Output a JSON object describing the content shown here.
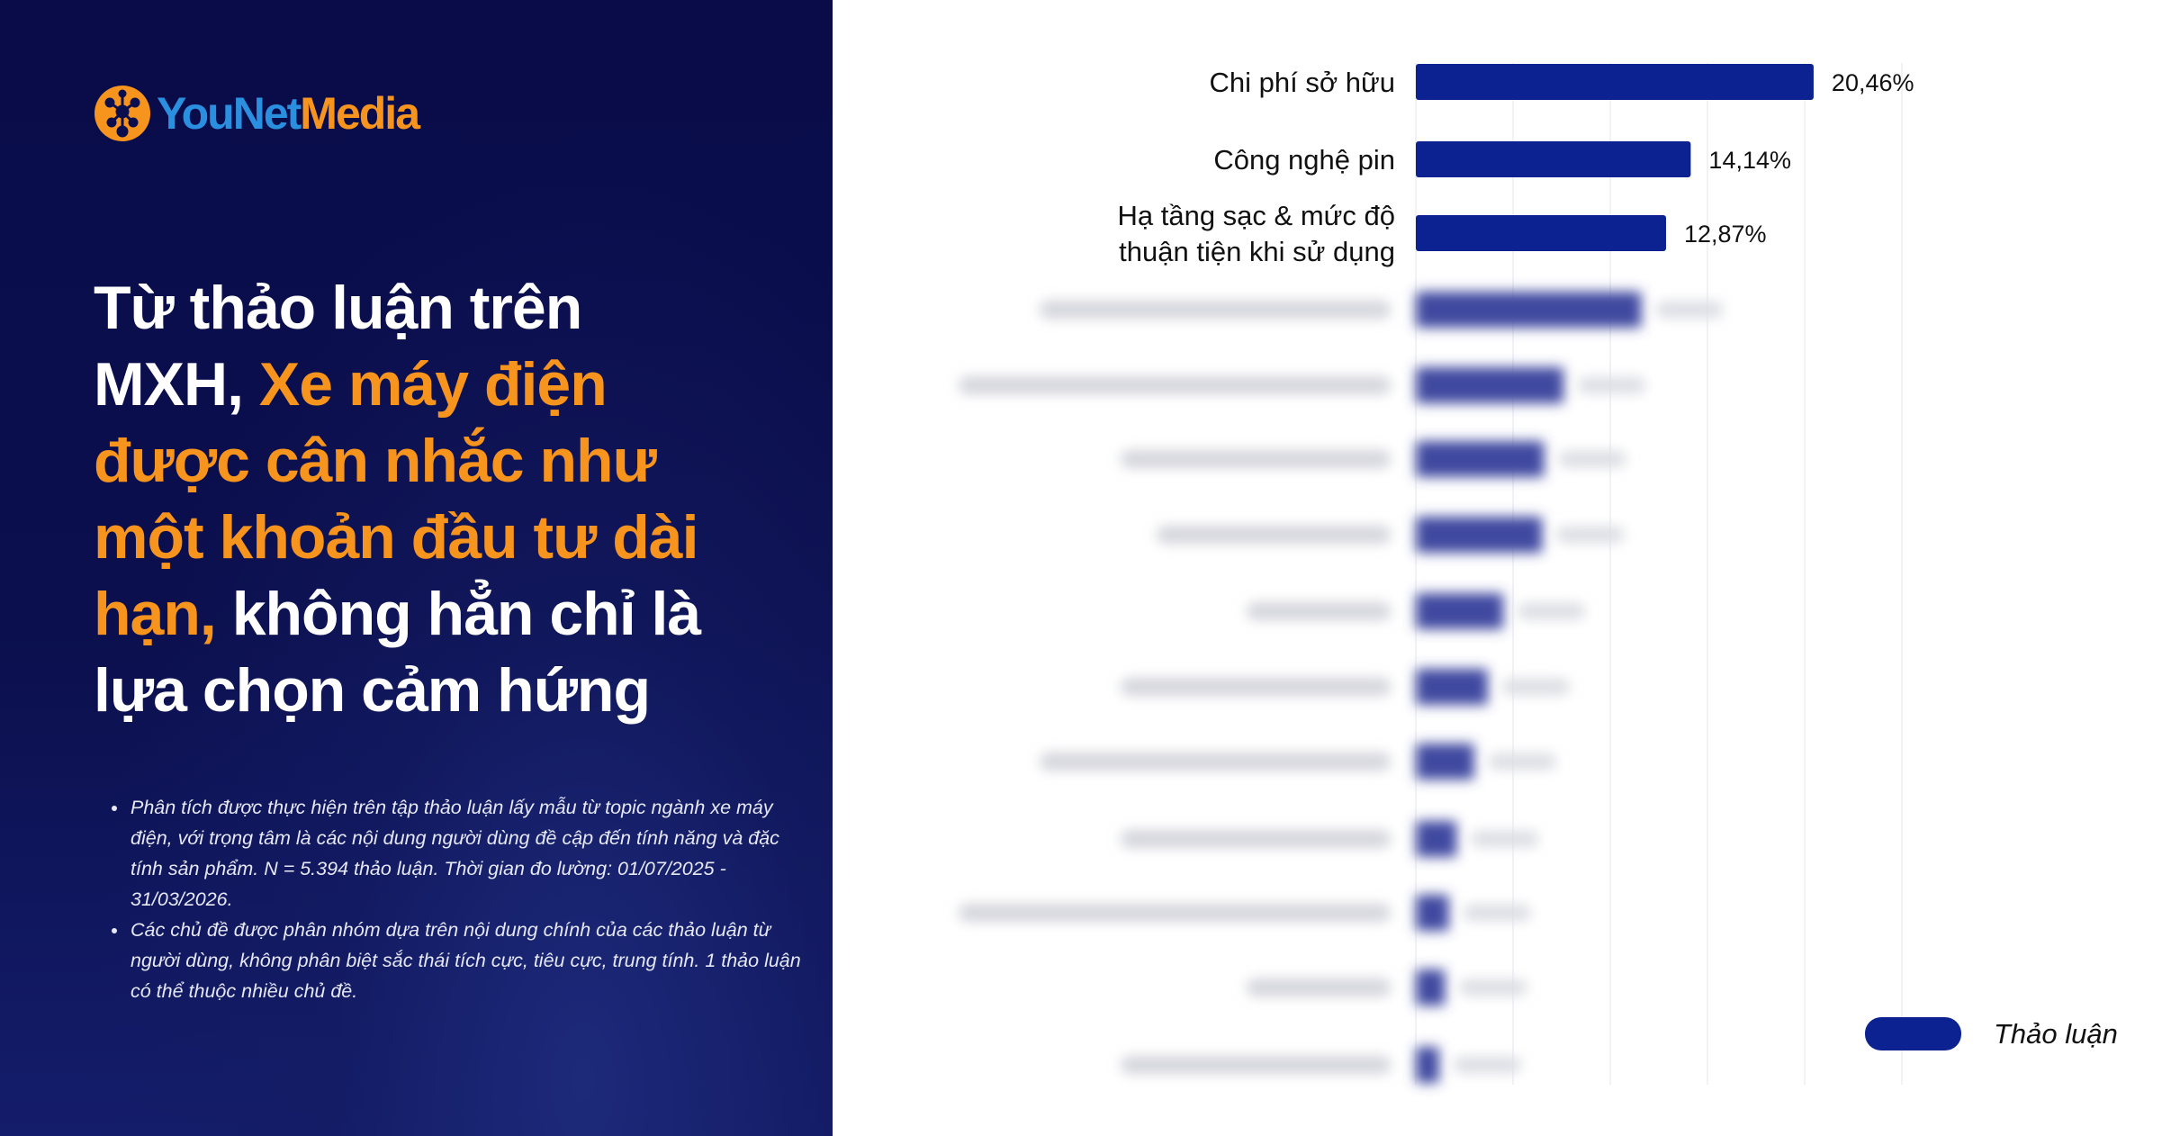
{
  "brand": {
    "logo_text_left": "YouNet",
    "logo_text_right": "Media",
    "colors": {
      "panel": "#0b0f4d",
      "accent": "#f7941d",
      "logo_blue": "#2b8fe0",
      "bar": "#0c2291"
    }
  },
  "headline": {
    "part1": "Từ thảo luận trên MXH, ",
    "highlight": "Xe máy điện được cân nhắc như một khoản đầu tư dài hạn,",
    "part2": " không hẳn chỉ là lựa chọn cảm hứng"
  },
  "notes": [
    "Phân tích được thực hiện trên tập thảo luận lấy mẫu từ topic ngành xe máy điện, với trọng tâm là các nội dung người dùng đề cập đến tính năng và đặc tính sản phẩm. N = 5.394 thảo luận. Thời gian đo lường: 01/07/2025 - 31/03/2026.",
    "Các chủ đề được phân nhóm dựa trên nội dung chính của các thảo luận từ người dùng, không phân biệt sắc thái tích cực, tiêu cực, trung tính. 1 thảo luận có thể thuộc nhiều chủ đề."
  ],
  "chart_data": {
    "type": "bar",
    "orientation": "horizontal",
    "categories": [
      [
        "Chi phí sở hữu"
      ],
      [
        "Công nghệ pin"
      ],
      [
        "Hạ tầng sạc & mức độ",
        "thuận tiện khi sử dụng"
      ],
      null,
      null,
      null,
      null,
      null,
      null,
      null,
      null,
      null,
      null,
      null
    ],
    "series": [
      {
        "name": "Thảo luận",
        "values": [
          20.46,
          14.14,
          12.87,
          11.6,
          7.6,
          6.6,
          6.5,
          4.5,
          3.7,
          3.0,
          2.1,
          1.7,
          1.5,
          1.2
        ],
        "value_labels": [
          "20,46%",
          "14,14%",
          "12,87%",
          null,
          null,
          null,
          null,
          null,
          null,
          null,
          null,
          null,
          null,
          null
        ]
      }
    ],
    "blurred_from_index": 3,
    "xlim": [
      0,
      25
    ],
    "grid": true,
    "legend": "bottom-right",
    "color": "#0c2291"
  },
  "legend": {
    "label": "Thảo luận"
  }
}
